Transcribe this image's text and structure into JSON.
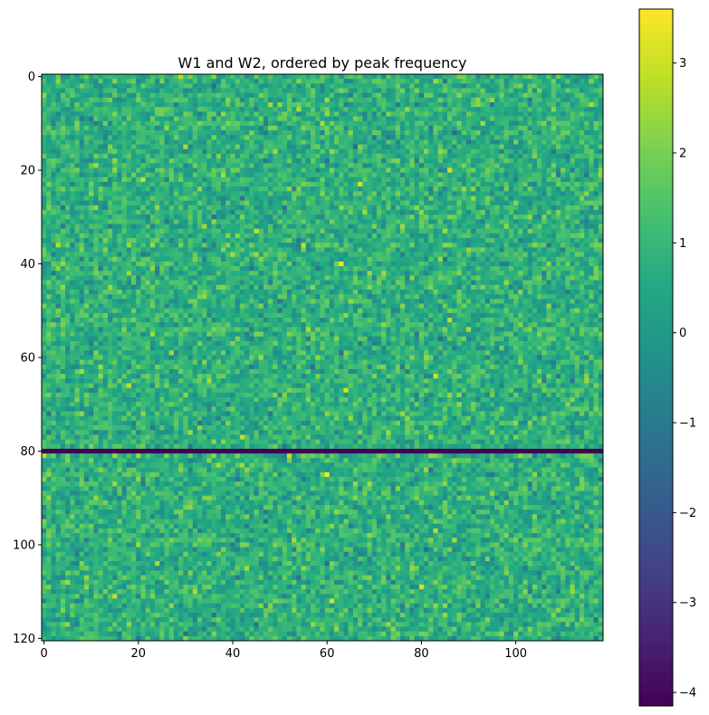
{
  "chart_data": {
    "type": "heatmap",
    "title": "W1 and W2, ordered by peak frequency",
    "xlabel": "",
    "ylabel": "",
    "rows": 121,
    "cols": 119,
    "xlim": [
      -0.5,
      118.5
    ],
    "ylim": [
      120.5,
      -0.5
    ],
    "x_ticks": [
      0,
      20,
      40,
      60,
      80,
      100
    ],
    "y_ticks": [
      0,
      20,
      40,
      60,
      80,
      100,
      120
    ],
    "colormap": "viridis",
    "value_range": [
      -4.15,
      3.6
    ],
    "value_distribution": {
      "mean": 0.75,
      "std": 0.65
    },
    "constant_rows": [
      {
        "row": 80,
        "value": -4.15
      }
    ],
    "colorbar": {
      "ticks": [
        3,
        2,
        1,
        0,
        -1,
        -2,
        -3,
        -4
      ],
      "tick_labels": [
        "3",
        "2",
        "1",
        "0",
        "−1",
        "−2",
        "−3",
        "−4"
      ]
    }
  }
}
